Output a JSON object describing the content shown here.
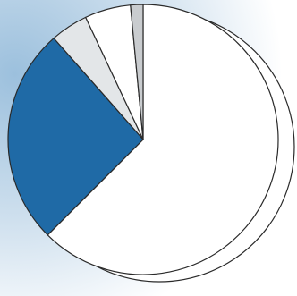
{
  "chart_data": {
    "type": "pie",
    "start_angle_deg": 0,
    "direction": "clockwise",
    "slices": [
      {
        "value": 62.5,
        "color": "#ffffff"
      },
      {
        "value": 26.0,
        "color": "#1f6aa6"
      },
      {
        "value": 4.5,
        "color": "#e3e6e8"
      },
      {
        "value": 5.5,
        "color": "#ffffff"
      },
      {
        "value": 1.5,
        "color": "#c9cccf"
      }
    ],
    "depth_shadow": true,
    "background": {
      "color": "#9cc0dd",
      "faded_to": "#ffffff"
    },
    "stroke_color": "#2a2a2a"
  }
}
